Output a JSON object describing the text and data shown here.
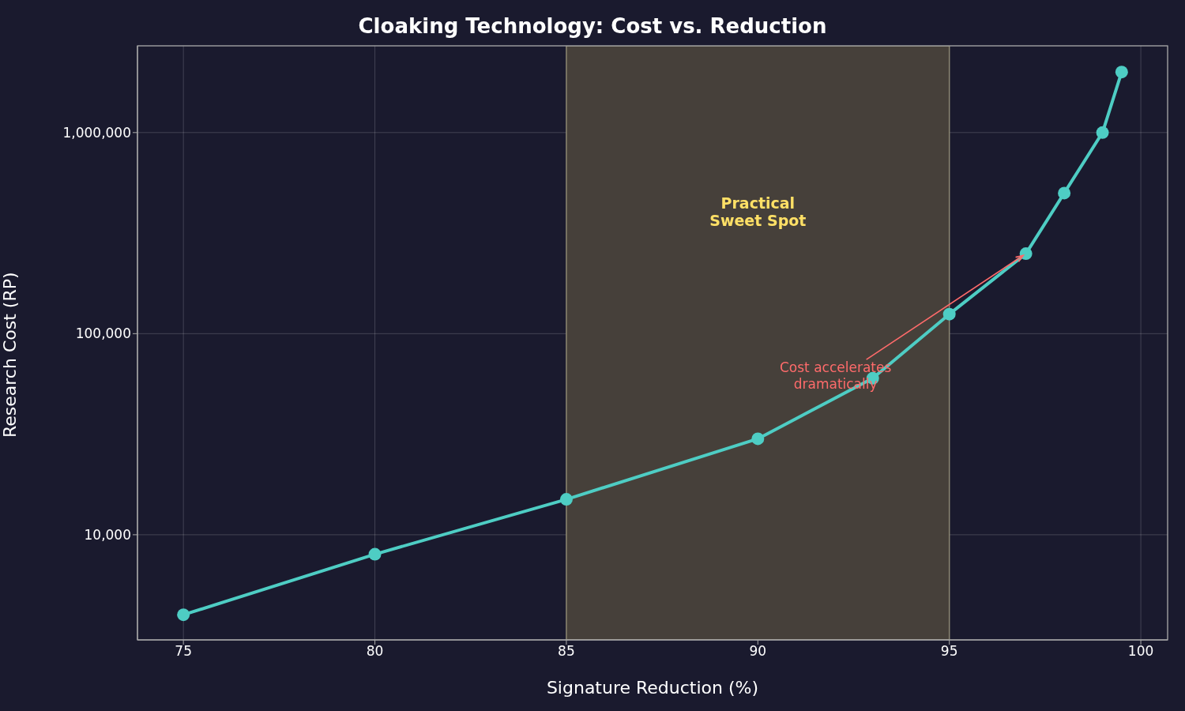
{
  "chart_data": {
    "type": "line",
    "title": "Cloaking Technology: Cost vs. Reduction",
    "xlabel": "Signature Reduction (%)",
    "ylabel": "Research Cost (RP)",
    "x": [
      75,
      80,
      85,
      90,
      93,
      95,
      97,
      98,
      99,
      99.5
    ],
    "series": [
      {
        "color": "#4ecdc4",
        "values": [
          4000,
          8000,
          15000,
          30000,
          60000,
          125000,
          250000,
          500000,
          1000000,
          2000000
        ]
      }
    ],
    "xlim": [
      73.8,
      100.7
    ],
    "xticks": [
      75,
      80,
      85,
      90,
      95,
      100
    ],
    "ylim": [
      3000,
      2700000
    ],
    "yticks": [
      {
        "value": 10000,
        "label": "10,000"
      },
      {
        "value": 100000,
        "label": "100,000"
      },
      {
        "value": 1000000,
        "label": "1,000,000"
      }
    ],
    "log": "y",
    "grid": true,
    "marker": "circle",
    "line_style": "solid",
    "bands": [
      {
        "axis": "x",
        "from": 85,
        "to": 95,
        "label": "Practical\nSweet Spot",
        "color": "#46403a"
      }
    ],
    "annotations": [
      {
        "text": "Cost accelerates\ndramatically",
        "x": 97,
        "y": 250000
      }
    ]
  }
}
